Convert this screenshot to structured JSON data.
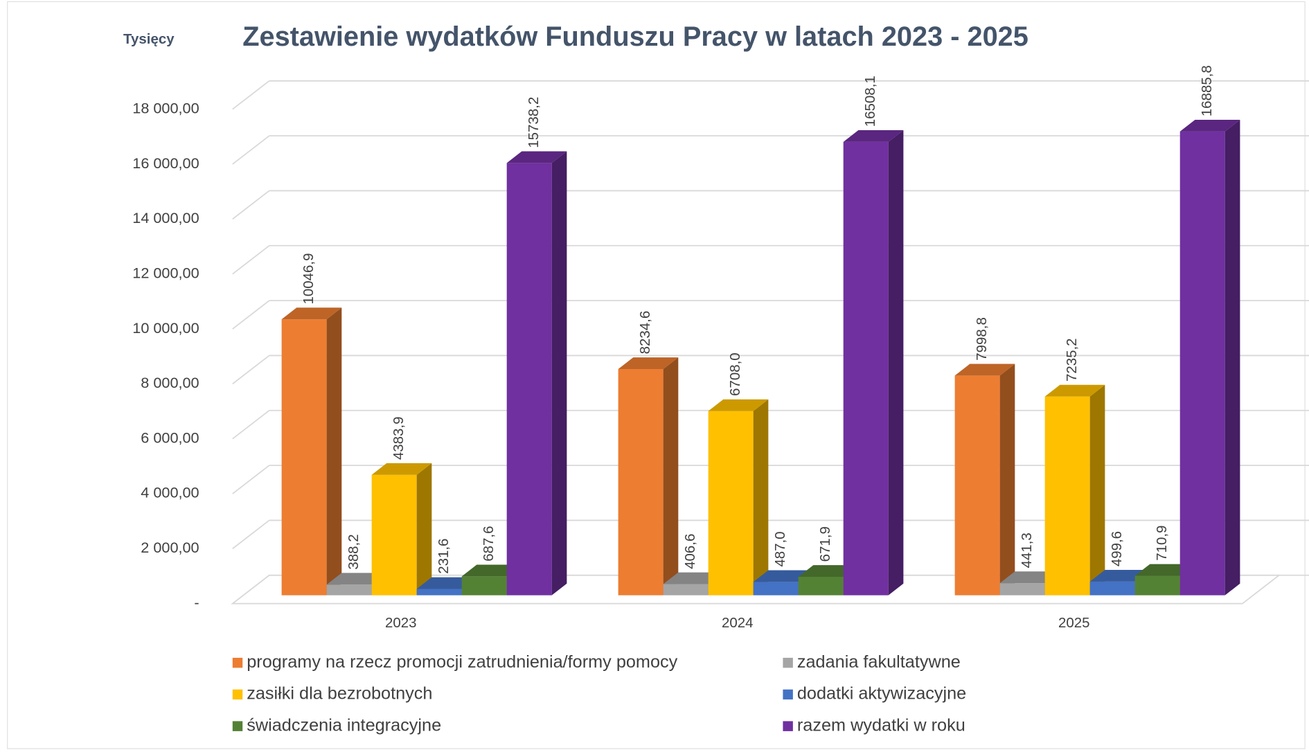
{
  "chart_data": {
    "type": "bar3d",
    "title": "Zestawienie wydatków Funduszu Pracy w latach 2023 - 2025",
    "y_axis_label": "Tysięcy",
    "categories": [
      "2023",
      "2024",
      "2025"
    ],
    "series": [
      {
        "name": "programy na rzecz promocji zatrudnienia/formy pomocy",
        "color": "#ED7D31",
        "values": [
          10046.9,
          8234.6,
          7998.8
        ],
        "value_labels": [
          "10046,9",
          "8234,6",
          "7998,8"
        ]
      },
      {
        "name": "zadania fakultatywne",
        "color": "#A5A5A5",
        "values": [
          388.2,
          406.6,
          441.3
        ],
        "value_labels": [
          "388,2",
          "406,6",
          "441,3"
        ]
      },
      {
        "name": "zasiłki dla bezrobotnych",
        "color": "#FFC000",
        "values": [
          4383.9,
          6708.0,
          7235.2
        ],
        "value_labels": [
          "4383,9",
          "6708,0",
          "7235,2"
        ]
      },
      {
        "name": "dodatki aktywizacyjne",
        "color": "#4472C4",
        "values": [
          231.6,
          487.0,
          499.6
        ],
        "value_labels": [
          "231,6",
          "487,0",
          "499,6"
        ]
      },
      {
        "name": "świadczenia integracyjne",
        "color": "#548235",
        "values": [
          687.6,
          671.9,
          710.9
        ],
        "value_labels": [
          "687,6",
          "671,9",
          "710,9"
        ]
      },
      {
        "name": "razem wydatki w roku",
        "color": "#7030A0",
        "values": [
          15738.2,
          16508.1,
          16885.8
        ],
        "value_labels": [
          "15738,2",
          "16508,1",
          "16885,8"
        ]
      }
    ],
    "ylim": [
      0,
      18000
    ],
    "yticks": [
      {
        "value": 0,
        "label": "-"
      },
      {
        "value": 2000,
        "label": "2 000,00"
      },
      {
        "value": 4000,
        "label": "4 000,00"
      },
      {
        "value": 6000,
        "label": "6 000,00"
      },
      {
        "value": 8000,
        "label": "8 000,00"
      },
      {
        "value": 10000,
        "label": "10 000,00"
      },
      {
        "value": 12000,
        "label": "12 000,00"
      },
      {
        "value": 14000,
        "label": "14 000,00"
      },
      {
        "value": 16000,
        "label": "16 000,00"
      },
      {
        "value": 18000,
        "label": "18 000,00"
      }
    ],
    "grid": true,
    "legend": "bottom"
  }
}
